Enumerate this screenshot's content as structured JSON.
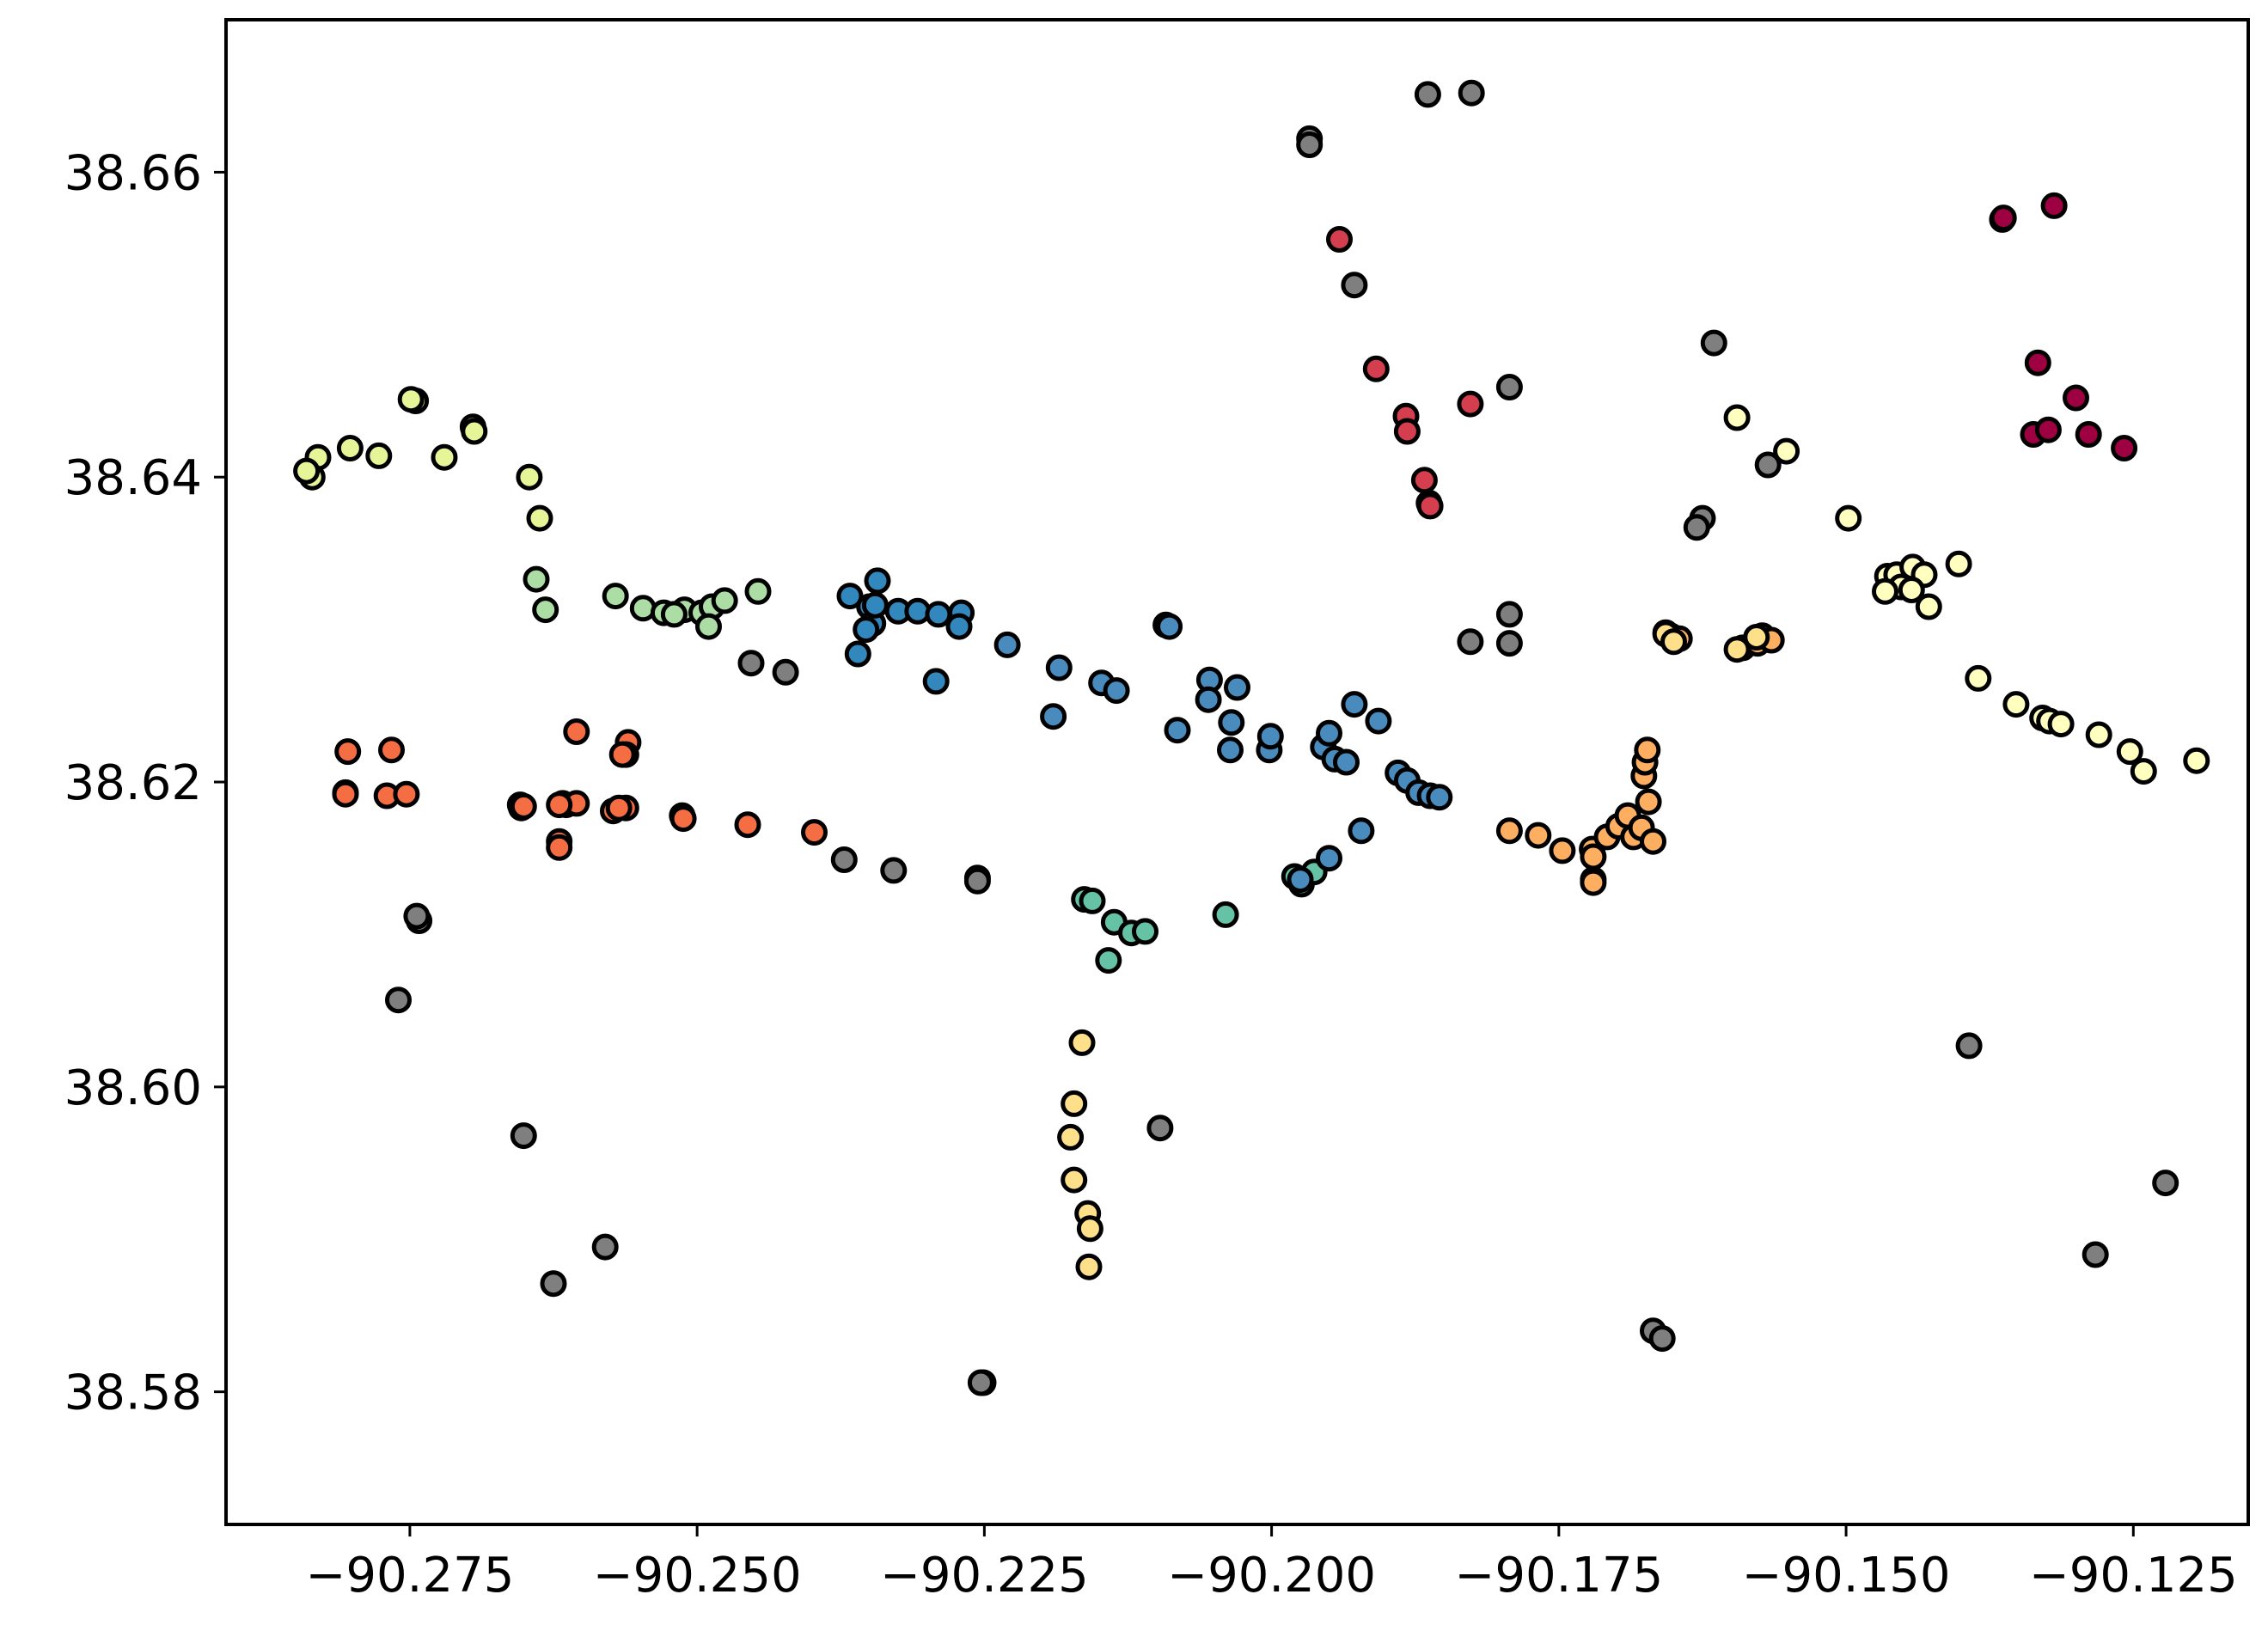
{
  "chart_data": {
    "type": "scatter",
    "title": "",
    "xlabel": "",
    "ylabel": "",
    "xlim": [
      -90.291,
      -90.115
    ],
    "ylim": [
      38.5713,
      38.67
    ],
    "grid": false,
    "legend": "none",
    "x_ticks": [
      {
        "value": -90.275,
        "label": "−90.275"
      },
      {
        "value": -90.25,
        "label": "−90.250"
      },
      {
        "value": -90.225,
        "label": "−90.225"
      },
      {
        "value": -90.2,
        "label": "−90.200"
      },
      {
        "value": -90.175,
        "label": "−90.175"
      },
      {
        "value": -90.15,
        "label": "−90.150"
      },
      {
        "value": -90.125,
        "label": "−90.125"
      }
    ],
    "y_ticks": [
      {
        "value": 38.58,
        "label": "38.58"
      },
      {
        "value": 38.6,
        "label": "38.60"
      },
      {
        "value": 38.62,
        "label": "38.62"
      },
      {
        "value": 38.64,
        "label": "38.64"
      },
      {
        "value": 38.66,
        "label": "38.66"
      }
    ],
    "palette": {
      "noise": "#7f7f7f",
      "c0": "#9e0142",
      "c1": "#d53e4f",
      "c2": "#f46d43",
      "c3": "#fdae61",
      "c4": "#fee08b",
      "c5": "#ffffbf",
      "c6": "#e6f598",
      "c7": "#abdda4",
      "c8": "#66c2a5",
      "c9": "#3288bd",
      "c10": "#5e4fa2",
      "c11": "#4a8bbd"
    },
    "series": [
      {
        "color_key": "noise",
        "points": [
          [
            -90.1967,
            38.6622
          ],
          [
            -90.1967,
            38.6618
          ],
          [
            -90.1864,
            38.6651
          ],
          [
            -90.1826,
            38.6652
          ],
          [
            -90.1928,
            38.6526
          ],
          [
            -90.1793,
            38.6459
          ],
          [
            -90.1615,
            38.6488
          ],
          [
            -90.1625,
            38.6373
          ],
          [
            -90.163,
            38.6367
          ],
          [
            -90.1568,
            38.6408
          ],
          [
            -90.1827,
            38.6292
          ],
          [
            -90.1793,
            38.631
          ],
          [
            -90.1793,
            38.6291
          ],
          [
            -90.2453,
            38.6278
          ],
          [
            -90.2423,
            38.6272
          ],
          [
            -90.2372,
            38.6149
          ],
          [
            -90.2329,
            38.6142
          ],
          [
            -90.2256,
            38.6137
          ],
          [
            -90.2256,
            38.6135
          ],
          [
            -90.2742,
            38.6109
          ],
          [
            -90.2744,
            38.6112
          ],
          [
            -90.276,
            38.6057
          ],
          [
            -90.2651,
            38.5968
          ],
          [
            -90.2625,
            38.5871
          ],
          [
            -90.258,
            38.5895
          ],
          [
            -90.2251,
            38.5806
          ],
          [
            -90.2253,
            38.5806
          ],
          [
            -90.2097,
            38.5973
          ],
          [
            -90.1668,
            38.584
          ],
          [
            -90.166,
            38.5835
          ],
          [
            -90.1393,
            38.6027
          ],
          [
            -90.1283,
            38.589
          ],
          [
            -90.1222,
            38.5937
          ]
        ]
      },
      {
        "color_key": "c0",
        "points": [
          [
            -90.1364,
            38.6569
          ],
          [
            -90.1363,
            38.657
          ],
          [
            -90.1319,
            38.6578
          ],
          [
            -90.1333,
            38.6475
          ],
          [
            -90.13,
            38.6452
          ],
          [
            -90.1337,
            38.6428
          ],
          [
            -90.1324,
            38.6431
          ],
          [
            -90.1289,
            38.6428
          ],
          [
            -90.1258,
            38.6419
          ]
        ]
      },
      {
        "color_key": "c1",
        "points": [
          [
            -90.1941,
            38.6556
          ],
          [
            -90.1909,
            38.6471
          ],
          [
            -90.1883,
            38.644
          ],
          [
            -90.1882,
            38.643
          ],
          [
            -90.1867,
            38.6398
          ],
          [
            -90.1863,
            38.6383
          ],
          [
            -90.1862,
            38.6381
          ],
          [
            -90.1827,
            38.6448
          ]
        ]
      },
      {
        "color_key": "c2",
        "points": [
          [
            -90.2804,
            38.622
          ],
          [
            -90.2806,
            38.6193
          ],
          [
            -90.2806,
            38.6192
          ],
          [
            -90.2766,
            38.6221
          ],
          [
            -90.277,
            38.6191
          ],
          [
            -90.2753,
            38.6192
          ],
          [
            -90.2605,
            38.6233
          ],
          [
            -90.2614,
            38.6185
          ],
          [
            -90.262,
            38.6161
          ],
          [
            -90.262,
            38.6157
          ],
          [
            -90.2653,
            38.6183
          ],
          [
            -90.2654,
            38.6185
          ],
          [
            -90.2651,
            38.6184
          ],
          [
            -90.2617,
            38.6186
          ],
          [
            -90.2605,
            38.6186
          ],
          [
            -90.256,
            38.6226
          ],
          [
            -90.2562,
            38.6218
          ],
          [
            -90.2565,
            38.6218
          ],
          [
            -90.2562,
            38.6183
          ],
          [
            -90.262,
            38.6185
          ],
          [
            -90.2573,
            38.6181
          ],
          [
            -90.2513,
            38.6178
          ],
          [
            -90.2456,
            38.6172
          ],
          [
            -90.2398,
            38.6167
          ],
          [
            -90.2568,
            38.6183
          ],
          [
            -90.2512,
            38.6176
          ]
        ]
      },
      {
        "color_key": "c3",
        "points": [
          [
            -90.1793,
            38.6168
          ],
          [
            -90.1768,
            38.6165
          ],
          [
            -90.1747,
            38.6155
          ],
          [
            -90.1721,
            38.6156
          ],
          [
            -90.172,
            38.6151
          ],
          [
            -90.172,
            38.6136
          ],
          [
            -90.172,
            38.6134
          ],
          [
            -90.1708,
            38.6164
          ],
          [
            -90.1698,
            38.6171
          ],
          [
            -90.169,
            38.6178
          ],
          [
            -90.1685,
            38.6164
          ],
          [
            -90.1678,
            38.617
          ],
          [
            -90.1668,
            38.6161
          ],
          [
            -90.1672,
            38.6187
          ],
          [
            -90.1676,
            38.6204
          ],
          [
            -90.1675,
            38.6213
          ],
          [
            -90.1673,
            38.6221
          ],
          [
            -90.1657,
            38.6298
          ],
          [
            -90.1653,
            38.6296
          ],
          [
            -90.1645,
            38.6294
          ],
          [
            -90.159,
            38.6288
          ],
          [
            -90.1577,
            38.6291
          ],
          [
            -90.1573,
            38.6296
          ],
          [
            -90.1565,
            38.6293
          ]
        ]
      },
      {
        "color_key": "c4",
        "points": [
          [
            -90.2165,
            38.6029
          ],
          [
            -90.2172,
            38.5989
          ],
          [
            -90.2175,
            38.5967
          ],
          [
            -90.2172,
            38.5939
          ],
          [
            -90.216,
            38.5917
          ],
          [
            -90.2158,
            38.5907
          ],
          [
            -90.2159,
            38.5882
          ],
          [
            -90.1657,
            38.6297
          ],
          [
            -90.165,
            38.6292
          ],
          [
            -90.1595,
            38.6287
          ],
          [
            -90.1578,
            38.6295
          ]
        ]
      },
      {
        "color_key": "c5",
        "points": [
          [
            -90.1595,
            38.6439
          ],
          [
            -90.1552,
            38.6417
          ],
          [
            -90.1498,
            38.6373
          ],
          [
            -90.1464,
            38.6335
          ],
          [
            -90.1456,
            38.6336
          ],
          [
            -90.1452,
            38.6328
          ],
          [
            -90.1442,
            38.6341
          ],
          [
            -90.1432,
            38.6336
          ],
          [
            -90.1428,
            38.6315
          ],
          [
            -90.1402,
            38.6343
          ],
          [
            -90.1385,
            38.6268
          ],
          [
            -90.1352,
            38.6251
          ],
          [
            -90.1329,
            38.6242
          ],
          [
            -90.1323,
            38.624
          ],
          [
            -90.1313,
            38.6238
          ],
          [
            -90.128,
            38.6231
          ],
          [
            -90.1253,
            38.622
          ],
          [
            -90.1241,
            38.6207
          ],
          [
            -90.1195,
            38.6214
          ],
          [
            -90.1466,
            38.6325
          ],
          [
            -90.1443,
            38.6326
          ]
        ]
      },
      {
        "color_key": "c6",
        "points": [
          [
            -90.2745,
            38.645
          ],
          [
            -90.2749,
            38.6451
          ],
          [
            -90.2695,
            38.6433
          ],
          [
            -90.2694,
            38.643
          ],
          [
            -90.272,
            38.6413
          ],
          [
            -90.2777,
            38.6414
          ],
          [
            -90.2802,
            38.6419
          ],
          [
            -90.283,
            38.6413
          ],
          [
            -90.2835,
            38.64
          ],
          [
            -90.284,
            38.6404
          ],
          [
            -90.2646,
            38.64
          ],
          [
            -90.2637,
            38.6373
          ]
        ]
      },
      {
        "color_key": "c7",
        "points": [
          [
            -90.264,
            38.6333
          ],
          [
            -90.2632,
            38.6313
          ],
          [
            -90.2571,
            38.6322
          ],
          [
            -90.2547,
            38.6314
          ],
          [
            -90.2529,
            38.6311
          ],
          [
            -90.2511,
            38.6313
          ],
          [
            -90.2496,
            38.6311
          ],
          [
            -90.2487,
            38.6315
          ],
          [
            -90.2476,
            38.6319
          ],
          [
            -90.2447,
            38.6325
          ],
          [
            -90.252,
            38.631
          ],
          [
            -90.249,
            38.6302
          ]
        ]
      },
      {
        "color_key": "c8",
        "points": [
          [
            -90.2163,
            38.6123
          ],
          [
            -90.2156,
            38.6122
          ],
          [
            -90.2137,
            38.6108
          ],
          [
            -90.2122,
            38.6101
          ],
          [
            -90.211,
            38.6102
          ],
          [
            -90.2142,
            38.6083
          ],
          [
            -90.204,
            38.6113
          ],
          [
            -90.198,
            38.6138
          ],
          [
            -90.1974,
            38.6133
          ],
          [
            -90.1963,
            38.6141
          ]
        ]
      },
      {
        "color_key": "c11",
        "points": [
          [
            -90.223,
            38.629
          ],
          [
            -90.2185,
            38.6275
          ],
          [
            -90.219,
            38.6243
          ],
          [
            -90.2148,
            38.6265
          ],
          [
            -90.2135,
            38.626
          ],
          [
            -90.2092,
            38.6303
          ],
          [
            -90.2089,
            38.6302
          ],
          [
            -90.2054,
            38.6267
          ],
          [
            -90.2055,
            38.6254
          ],
          [
            -90.203,
            38.6262
          ],
          [
            -90.2035,
            38.6239
          ],
          [
            -90.2036,
            38.6221
          ],
          [
            -90.2082,
            38.6234
          ],
          [
            -90.2002,
            38.6221
          ],
          [
            -90.2001,
            38.623
          ],
          [
            -90.1955,
            38.6223
          ],
          [
            -90.195,
            38.6232
          ],
          [
            -90.1945,
            38.6215
          ],
          [
            -90.1935,
            38.6213
          ],
          [
            -90.1928,
            38.6251
          ],
          [
            -90.1907,
            38.624
          ],
          [
            -90.189,
            38.6206
          ],
          [
            -90.1882,
            38.6201
          ],
          [
            -90.1872,
            38.6193
          ],
          [
            -90.1862,
            38.6191
          ],
          [
            -90.1854,
            38.619
          ],
          [
            -90.1922,
            38.6168
          ],
          [
            -90.195,
            38.615
          ],
          [
            -90.1975,
            38.6136
          ]
        ]
      },
      {
        "color_key": "c9",
        "points": [
          [
            -90.2367,
            38.6322
          ],
          [
            -90.235,
            38.6315
          ],
          [
            -90.2343,
            38.6332
          ],
          [
            -90.2347,
            38.6304
          ],
          [
            -90.2353,
            38.63
          ],
          [
            -90.2325,
            38.6312
          ],
          [
            -90.2308,
            38.6312
          ],
          [
            -90.229,
            38.631
          ],
          [
            -90.227,
            38.6311
          ],
          [
            -90.2272,
            38.6302
          ],
          [
            -90.236,
            38.6284
          ],
          [
            -90.2292,
            38.6266
          ],
          [
            -90.2345,
            38.6316
          ]
        ]
      }
    ]
  }
}
